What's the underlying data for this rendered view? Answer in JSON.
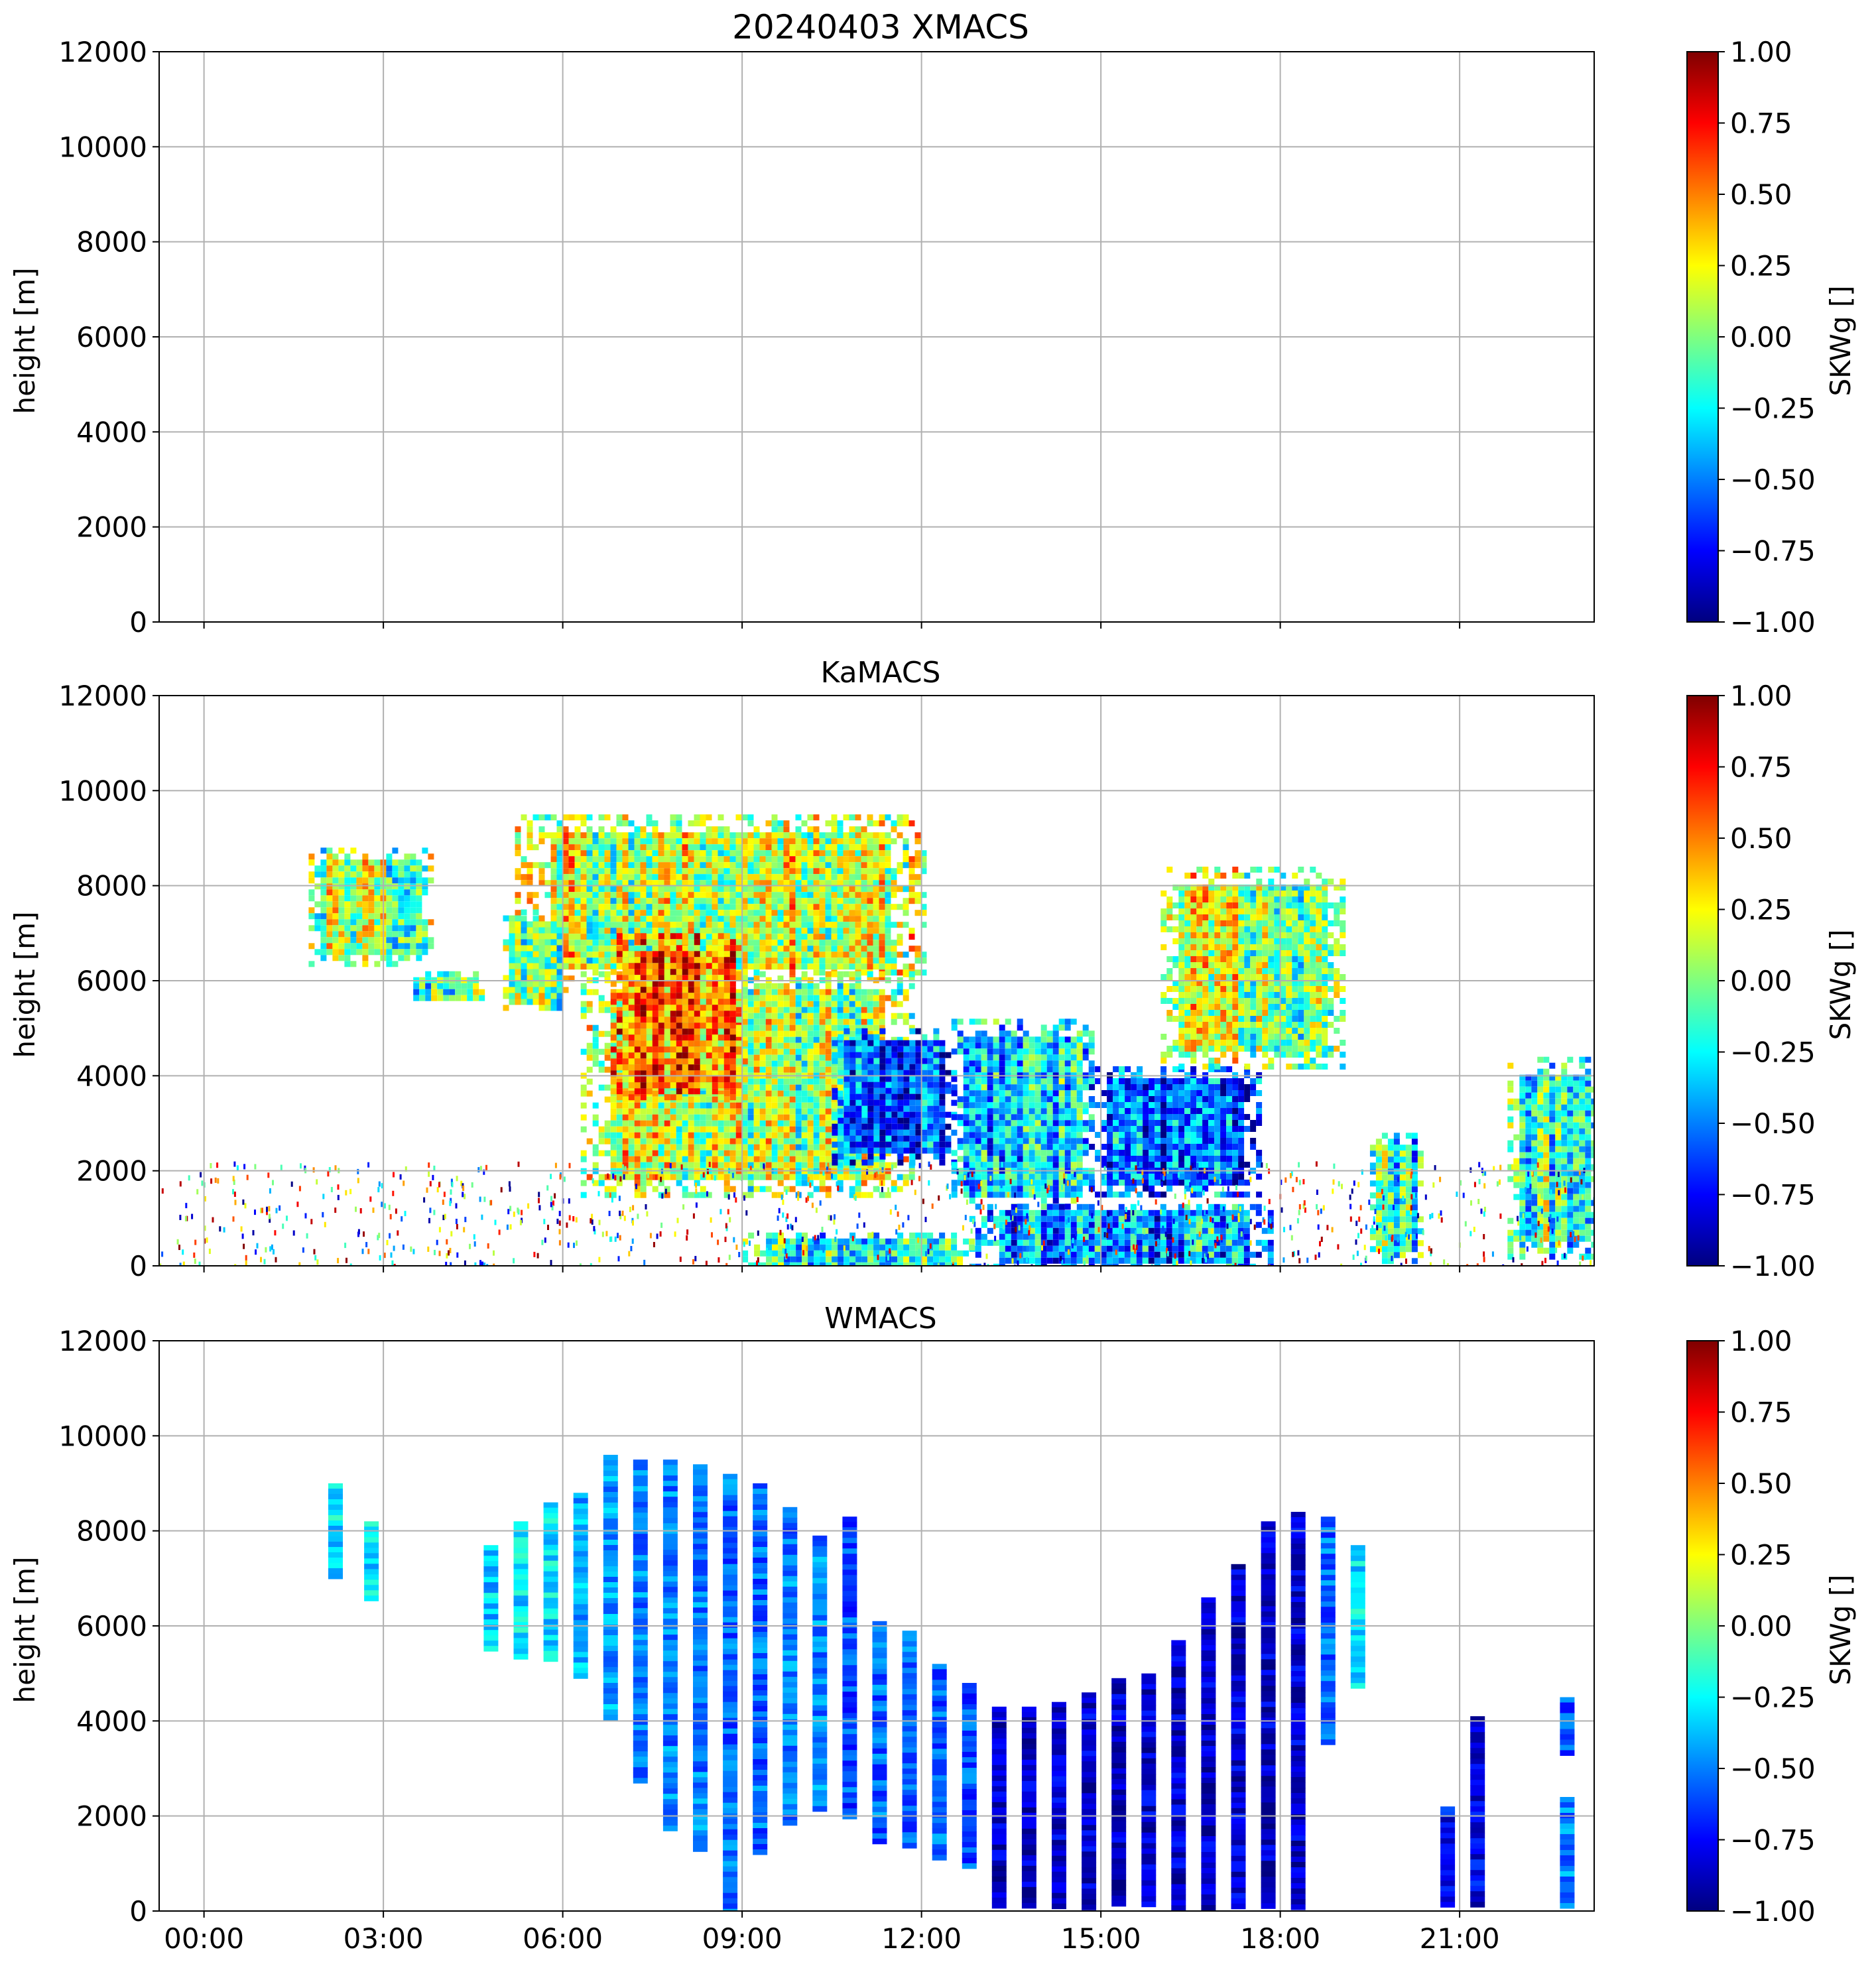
{
  "colormap": [
    "#00007f",
    "#0000ff",
    "#007fff",
    "#00ffff",
    "#7fff7f",
    "#ffff00",
    "#ff7f00",
    "#ff0000",
    "#7f0000"
  ],
  "colors": {
    "grid": "#b0b0b0",
    "axes": "#000000"
  },
  "x_ticks": [
    "00:00",
    "03:00",
    "06:00",
    "09:00",
    "12:00",
    "15:00",
    "18:00",
    "21:00"
  ],
  "chart_data": [
    {
      "type": "heatmap",
      "title": "20240403 XMACS",
      "ylabel": "height [m]",
      "ylim": [
        0,
        12000
      ],
      "y_ticks": [
        "0",
        "2000",
        "4000",
        "6000",
        "8000",
        "10000",
        "12000"
      ],
      "x_range_hours": [
        -0.75,
        23.25
      ],
      "grid": true,
      "colorbar": {
        "label": "SKWg []",
        "range": [
          -1.0,
          1.0
        ],
        "ticks": [
          "−1.00",
          "−0.75",
          "−0.50",
          "−0.25",
          "0.00",
          "0.25",
          "0.50",
          "0.75",
          "1.00"
        ]
      },
      "blobs": []
    },
    {
      "type": "heatmap",
      "title": "KaMACS",
      "ylabel": "height [m]",
      "ylim": [
        0,
        12000
      ],
      "y_ticks": [
        "0",
        "2000",
        "4000",
        "6000",
        "8000",
        "10000",
        "12000"
      ],
      "x_range_hours": [
        -0.75,
        23.25
      ],
      "grid": true,
      "colorbar": {
        "label": "SKWg []",
        "range": [
          -1.0,
          1.0
        ],
        "ticks": [
          "−1.00",
          "−0.75",
          "−0.50",
          "−0.25",
          "0.00",
          "0.25",
          "0.50",
          "0.75",
          "1.00"
        ]
      },
      "blobs": [
        {
          "t": [
            1.75,
            3.75
          ],
          "h": [
            6400,
            8800
          ],
          "skw": 0.05
        },
        {
          "t": [
            3.5,
            4.6
          ],
          "h": [
            5600,
            6200
          ],
          "skw": -0.1
        },
        {
          "t": [
            5.2,
            12.0
          ],
          "h": [
            6000,
            9500
          ],
          "skw": 0.15
        },
        {
          "t": [
            5.0,
            6.0
          ],
          "h": [
            5400,
            7500
          ],
          "skw": 0.0
        },
        {
          "t": [
            6.3,
            11.8
          ],
          "h": [
            1500,
            6200
          ],
          "skw": 0.1
        },
        {
          "t": [
            6.8,
            9.0
          ],
          "h": [
            3500,
            7000
          ],
          "skw": 0.5
        },
        {
          "t": [
            10.5,
            12.5
          ],
          "h": [
            2200,
            5000
          ],
          "skw": -0.55
        },
        {
          "t": [
            12.5,
            14.8
          ],
          "h": [
            1200,
            5200
          ],
          "skw": -0.35
        },
        {
          "t": [
            14.8,
            17.6
          ],
          "h": [
            1500,
            4200
          ],
          "skw": -0.6
        },
        {
          "t": [
            16.0,
            19.0
          ],
          "h": [
            4200,
            8400
          ],
          "skw": 0.1
        },
        {
          "t": [
            12.8,
            17.8
          ],
          "h": [
            0,
            1300
          ],
          "skw": -0.45
        },
        {
          "t": [
            9.0,
            12.8
          ],
          "h": [
            0,
            700
          ],
          "skw": -0.2
        },
        {
          "t": [
            19.5,
            20.3
          ],
          "h": [
            100,
            2800
          ],
          "skw": -0.2
        },
        {
          "t": [
            21.8,
            23.25
          ],
          "h": [
            200,
            4400
          ],
          "skw": -0.1
        }
      ]
    },
    {
      "type": "heatmap",
      "title": "WMACS",
      "ylabel": "height [m]",
      "ylim": [
        0,
        12000
      ],
      "y_ticks": [
        "0",
        "2000",
        "4000",
        "6000",
        "8000",
        "10000",
        "12000"
      ],
      "x_range_hours": [
        -0.75,
        23.25
      ],
      "grid": true,
      "colorbar": {
        "label": "SKWg []",
        "range": [
          -1.0,
          1.0
        ],
        "ticks": [
          "−1.00",
          "−0.75",
          "−0.50",
          "−0.25",
          "0.00",
          "0.25",
          "0.50",
          "0.75",
          "1.00"
        ]
      },
      "stripes": [
        {
          "t": 2.2,
          "h": [
            7000,
            9000
          ],
          "skw": -0.3
        },
        {
          "t": 2.8,
          "h": [
            6600,
            8200
          ],
          "skw": -0.3
        },
        {
          "t": 4.8,
          "h": [
            5500,
            7700
          ],
          "skw": -0.35
        },
        {
          "t": 5.3,
          "h": [
            5300,
            8200
          ],
          "skw": -0.3
        },
        {
          "t": 5.8,
          "h": [
            5300,
            8600
          ],
          "skw": -0.3
        },
        {
          "t": 6.3,
          "h": [
            5000,
            8800
          ],
          "skw": -0.4
        },
        {
          "t": 6.8,
          "h": [
            4100,
            9600
          ],
          "skw": -0.45
        },
        {
          "t": 7.3,
          "h": [
            2700,
            9500
          ],
          "skw": -0.5
        },
        {
          "t": 7.8,
          "h": [
            1700,
            9500
          ],
          "skw": -0.5
        },
        {
          "t": 8.3,
          "h": [
            1300,
            9400
          ],
          "skw": -0.5
        },
        {
          "t": 8.8,
          "h": [
            0,
            9200
          ],
          "skw": -0.55
        },
        {
          "t": 9.3,
          "h": [
            1200,
            9000
          ],
          "skw": -0.55
        },
        {
          "t": 9.8,
          "h": [
            1900,
            8500
          ],
          "skw": -0.5
        },
        {
          "t": 10.3,
          "h": [
            2100,
            7900
          ],
          "skw": -0.5
        },
        {
          "t": 10.8,
          "h": [
            2000,
            8300
          ],
          "skw": -0.6
        },
        {
          "t": 11.3,
          "h": [
            1500,
            6100
          ],
          "skw": -0.55
        },
        {
          "t": 11.8,
          "h": [
            1400,
            5900
          ],
          "skw": -0.55
        },
        {
          "t": 12.3,
          "h": [
            1100,
            5200
          ],
          "skw": -0.55
        },
        {
          "t": 12.8,
          "h": [
            1000,
            4800
          ],
          "skw": -0.6
        },
        {
          "t": 13.3,
          "h": [
            100,
            4300
          ],
          "skw": -0.85
        },
        {
          "t": 13.8,
          "h": [
            100,
            4300
          ],
          "skw": -0.85
        },
        {
          "t": 14.3,
          "h": [
            100,
            4400
          ],
          "skw": -0.85
        },
        {
          "t": 14.8,
          "h": [
            100,
            4600
          ],
          "skw": -0.85
        },
        {
          "t": 15.3,
          "h": [
            100,
            4900
          ],
          "skw": -0.85
        },
        {
          "t": 15.8,
          "h": [
            100,
            5000
          ],
          "skw": -0.85
        },
        {
          "t": 16.3,
          "h": [
            100,
            5700
          ],
          "skw": -0.85
        },
        {
          "t": 16.8,
          "h": [
            100,
            6600
          ],
          "skw": -0.85
        },
        {
          "t": 17.3,
          "h": [
            100,
            7300
          ],
          "skw": -0.85
        },
        {
          "t": 17.8,
          "h": [
            100,
            8200
          ],
          "skw": -0.85
        },
        {
          "t": 18.3,
          "h": [
            100,
            8400
          ],
          "skw": -0.85
        },
        {
          "t": 18.8,
          "h": [
            3500,
            8300
          ],
          "skw": -0.55
        },
        {
          "t": 19.3,
          "h": [
            4700,
            7700
          ],
          "skw": -0.3
        },
        {
          "t": 20.8,
          "h": [
            100,
            2200
          ],
          "skw": -0.75
        },
        {
          "t": 21.3,
          "h": [
            100,
            4100
          ],
          "skw": -0.8
        },
        {
          "t": 22.8,
          "h": [
            100,
            2400
          ],
          "skw": -0.5
        },
        {
          "t": 22.8,
          "h": [
            3300,
            4500
          ],
          "skw": -0.6
        }
      ]
    }
  ]
}
